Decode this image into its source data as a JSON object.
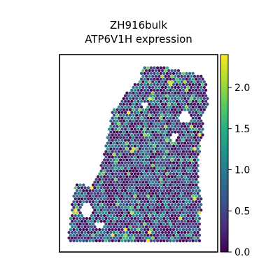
{
  "chart_data": {
    "type": "scatter",
    "title": "ZH916bulk",
    "subtitle": "ATP6V1H expression",
    "xlabel": "",
    "ylabel": "",
    "colormap": "viridis",
    "colorbar": {
      "vmin": 0.0,
      "vmax": 2.4,
      "ticks": [
        0.0,
        0.5,
        1.0,
        1.5,
        2.0
      ],
      "tick_labels": [
        "0.0",
        "0.5",
        "1.0",
        "1.5",
        "2.0"
      ]
    },
    "point_marker": "hexagon",
    "axes_ticks_visible": false,
    "value_distribution": {
      "mostly_low": true,
      "typical_range": [
        0.0,
        1.3
      ],
      "max_observed": 2.4
    }
  }
}
